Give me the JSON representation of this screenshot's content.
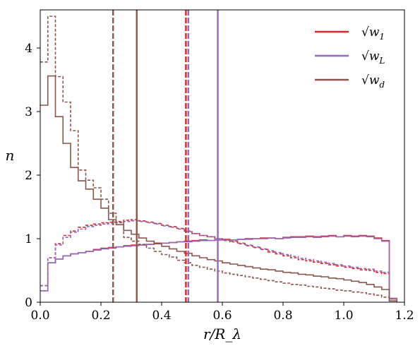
{
  "chart_data": {
    "type": "histogram-step",
    "xlabel": "r/R_λ",
    "ylabel": "n",
    "xlim": [
      0.0,
      1.2
    ],
    "ylim": [
      0,
      4.6
    ],
    "xticks": [
      "0.0",
      "0.2",
      "0.4",
      "0.6",
      "0.8",
      "1.0",
      "1.2"
    ],
    "yticks": [
      "0",
      "1",
      "2",
      "3",
      "4"
    ],
    "grid": false,
    "legend_position": "top-right",
    "bin_width": 0.025,
    "x_start": 0.0,
    "series": [
      {
        "name": "√w_1",
        "color": "#d62728",
        "linestyle": "solid",
        "values": [
          0.18,
          0.62,
          0.68,
          0.73,
          0.76,
          0.78,
          0.8,
          0.83,
          0.85,
          0.86,
          0.87,
          0.89,
          0.9,
          0.9,
          0.91,
          0.93,
          0.93,
          0.94,
          0.95,
          0.96,
          0.97,
          0.98,
          0.97,
          0.98,
          0.99,
          0.98,
          0.99,
          1.0,
          1.0,
          1.01,
          1.01,
          1.0,
          1.02,
          1.03,
          1.03,
          1.04,
          1.03,
          1.04,
          1.05,
          1.03,
          1.05,
          1.04,
          1.05,
          1.04,
          1.01,
          0.97,
          0.06
        ]
      },
      {
        "name": "√w_1",
        "color": "#d62728",
        "linestyle": "dashed",
        "values": [
          0.26,
          0.7,
          0.92,
          1.05,
          1.12,
          1.18,
          1.21,
          1.23,
          1.25,
          1.26,
          1.27,
          1.29,
          1.3,
          1.28,
          1.26,
          1.24,
          1.21,
          1.19,
          1.16,
          1.12,
          1.08,
          1.05,
          1.03,
          1.0,
          0.97,
          0.95,
          0.92,
          0.89,
          0.86,
          0.83,
          0.79,
          0.76,
          0.73,
          0.7,
          0.67,
          0.65,
          0.63,
          0.61,
          0.59,
          0.57,
          0.55,
          0.53,
          0.51,
          0.5,
          0.47,
          0.45,
          0.05
        ]
      },
      {
        "name": "√w_L",
        "color": "#9467bd",
        "linestyle": "solid",
        "values": [
          0.18,
          0.62,
          0.68,
          0.73,
          0.76,
          0.78,
          0.8,
          0.82,
          0.84,
          0.85,
          0.87,
          0.88,
          0.89,
          0.9,
          0.91,
          0.92,
          0.93,
          0.94,
          0.95,
          0.95,
          0.96,
          0.97,
          0.97,
          0.98,
          0.98,
          0.98,
          0.99,
          0.99,
          1.0,
          1.0,
          1.01,
          1.0,
          1.01,
          1.02,
          1.02,
          1.03,
          1.02,
          1.03,
          1.04,
          1.03,
          1.04,
          1.03,
          1.04,
          1.03,
          1.0,
          0.96,
          0.06
        ]
      },
      {
        "name": "√w_L",
        "color": "#9467bd",
        "linestyle": "dashed",
        "values": [
          0.26,
          0.7,
          0.9,
          1.02,
          1.1,
          1.15,
          1.19,
          1.21,
          1.23,
          1.24,
          1.25,
          1.27,
          1.28,
          1.27,
          1.25,
          1.23,
          1.2,
          1.18,
          1.15,
          1.11,
          1.08,
          1.05,
          1.03,
          1.0,
          0.98,
          0.96,
          0.93,
          0.9,
          0.87,
          0.84,
          0.81,
          0.78,
          0.75,
          0.72,
          0.69,
          0.67,
          0.65,
          0.63,
          0.61,
          0.59,
          0.57,
          0.55,
          0.53,
          0.52,
          0.49,
          0.47,
          0.05
        ]
      },
      {
        "name": "√w_d",
        "color": "#8c564b",
        "linestyle": "solid",
        "values": [
          3.1,
          3.56,
          2.92,
          2.5,
          2.12,
          1.91,
          1.78,
          1.62,
          1.48,
          1.3,
          1.22,
          1.13,
          1.07,
          1.01,
          0.96,
          0.92,
          0.88,
          0.84,
          0.8,
          0.77,
          0.73,
          0.7,
          0.67,
          0.65,
          0.62,
          0.6,
          0.58,
          0.56,
          0.54,
          0.52,
          0.51,
          0.49,
          0.47,
          0.46,
          0.44,
          0.43,
          0.41,
          0.4,
          0.38,
          0.37,
          0.35,
          0.33,
          0.31,
          0.28,
          0.24,
          0.2,
          0.02
        ]
      },
      {
        "name": "√w_d",
        "color": "#8c564b",
        "linestyle": "dashed",
        "values": [
          3.78,
          4.5,
          3.55,
          3.15,
          2.7,
          2.08,
          1.92,
          1.8,
          1.62,
          1.4,
          1.26,
          1.02,
          0.96,
          0.91,
          0.85,
          0.8,
          0.75,
          0.71,
          0.66,
          0.62,
          0.58,
          0.55,
          0.52,
          0.49,
          0.46,
          0.44,
          0.42,
          0.4,
          0.38,
          0.36,
          0.34,
          0.32,
          0.3,
          0.28,
          0.27,
          0.25,
          0.24,
          0.22,
          0.21,
          0.19,
          0.18,
          0.16,
          0.15,
          0.13,
          0.11,
          0.08,
          0.02
        ]
      }
    ],
    "vlines": [
      {
        "x": 0.24,
        "color": "#8c564b",
        "linestyle": "dashed"
      },
      {
        "x": 0.318,
        "color": "#8c564b",
        "linestyle": "solid"
      },
      {
        "x": 0.48,
        "color": "#d62728",
        "linestyle": "dashed"
      },
      {
        "x": 0.488,
        "color": "#9467bd",
        "linestyle": "dashed"
      },
      {
        "x": 0.585,
        "color": "#9467bd",
        "linestyle": "solid"
      }
    ],
    "legend": [
      {
        "label_main": "√w",
        "label_sub": "1",
        "color": "#d62728"
      },
      {
        "label_main": "√w",
        "label_sub": "L",
        "color": "#9467bd"
      },
      {
        "label_main": "√w",
        "label_sub": "d",
        "color": "#8c564b"
      }
    ]
  }
}
